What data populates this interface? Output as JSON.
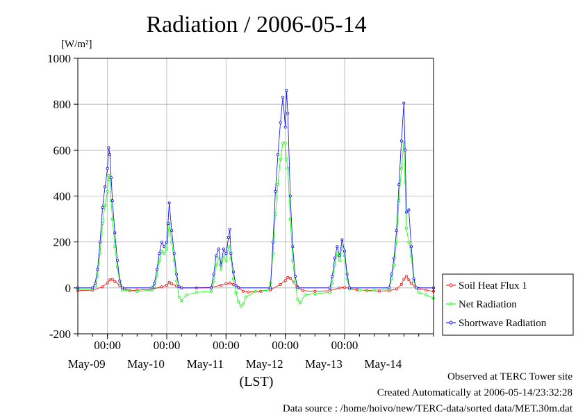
{
  "chart_data": {
    "type": "line",
    "title": "Radiation / 2006-05-14",
    "ylabel": "[W/m²]",
    "xlabel": "(LST)",
    "ylim": [
      -200,
      1000
    ],
    "yticks": [
      -200,
      0,
      200,
      400,
      600,
      800,
      1000
    ],
    "x_start": "2006-05-08T12:00",
    "x_end": "2006-05-14T12:00",
    "midnight_ticks": [
      {
        "time": "2006-05-09T00:00",
        "label": "00:00"
      },
      {
        "time": "2006-05-10T00:00",
        "label": "00:00"
      },
      {
        "time": "2006-05-11T00:00",
        "label": "00:00"
      },
      {
        "time": "2006-05-12T00:00",
        "label": "00:00"
      },
      {
        "time": "2006-05-13T00:00",
        "label": "00:00"
      }
    ],
    "day_labels": [
      {
        "time": "2006-05-09T00:00",
        "label": "May-09"
      },
      {
        "time": "2006-05-10T00:00",
        "label": "May-10"
      },
      {
        "time": "2006-05-11T00:00",
        "label": "May-11"
      },
      {
        "time": "2006-05-12T00:00",
        "label": "May-12"
      },
      {
        "time": "2006-05-13T00:00",
        "label": "May-13"
      },
      {
        "time": "2006-05-14T00:00",
        "label": "May-14"
      }
    ],
    "grid": true,
    "legend_position": "bottom-right outside plot",
    "series": [
      {
        "name": "Soil Heat Flux 1",
        "color": "#ff0000",
        "points": [
          [
            "2006-05-08T12:00",
            -12
          ],
          [
            "2006-05-08T18:00",
            -10
          ],
          [
            "2006-05-08T22:00",
            5
          ],
          [
            "2006-05-09T00:00",
            22
          ],
          [
            "2006-05-09T01:00",
            35
          ],
          [
            "2006-05-09T02:00",
            37
          ],
          [
            "2006-05-09T03:00",
            28
          ],
          [
            "2006-05-09T05:00",
            10
          ],
          [
            "2006-05-09T07:00",
            -5
          ],
          [
            "2006-05-09T09:00",
            -12
          ],
          [
            "2006-05-09T12:00",
            -10
          ],
          [
            "2006-05-09T18:00",
            -6
          ],
          [
            "2006-05-09T22:00",
            5
          ],
          [
            "2006-05-10T00:00",
            12
          ],
          [
            "2006-05-10T01:00",
            25
          ],
          [
            "2006-05-10T02:00",
            18
          ],
          [
            "2006-05-10T04:00",
            8
          ],
          [
            "2006-05-10T06:00",
            0
          ],
          [
            "2006-05-10T12:00",
            0
          ],
          [
            "2006-05-10T18:00",
            2
          ],
          [
            "2006-05-10T22:00",
            12
          ],
          [
            "2006-05-11T00:00",
            18
          ],
          [
            "2006-05-11T01:30",
            22
          ],
          [
            "2006-05-11T03:00",
            15
          ],
          [
            "2006-05-11T05:00",
            2
          ],
          [
            "2006-05-11T07:00",
            -15
          ],
          [
            "2006-05-11T09:00",
            -18
          ],
          [
            "2006-05-11T14:00",
            -15
          ],
          [
            "2006-05-11T18:00",
            -8
          ],
          [
            "2006-05-11T22:00",
            15
          ],
          [
            "2006-05-12T00:00",
            32
          ],
          [
            "2006-05-12T01:00",
            45
          ],
          [
            "2006-05-12T02:00",
            42
          ],
          [
            "2006-05-12T03:30",
            25
          ],
          [
            "2006-05-12T05:00",
            5
          ],
          [
            "2006-05-12T07:00",
            -12
          ],
          [
            "2006-05-12T12:00",
            -15
          ],
          [
            "2006-05-12T18:00",
            -12
          ],
          [
            "2006-05-12T22:00",
            0
          ],
          [
            "2006-05-13T00:00",
            2
          ],
          [
            "2006-05-13T02:00",
            -2
          ],
          [
            "2006-05-13T05:00",
            -8
          ],
          [
            "2006-05-13T09:00",
            -12
          ],
          [
            "2006-05-13T14:00",
            -14
          ],
          [
            "2006-05-13T18:00",
            -12
          ],
          [
            "2006-05-13T21:00",
            -5
          ],
          [
            "2006-05-13T23:00",
            15
          ],
          [
            "2006-05-14T00:00",
            38
          ],
          [
            "2006-05-14T01:00",
            50
          ],
          [
            "2006-05-14T02:00",
            35
          ],
          [
            "2006-05-14T03:00",
            20
          ],
          [
            "2006-05-14T04:30",
            8
          ],
          [
            "2006-05-14T06:00",
            -3
          ],
          [
            "2006-05-14T09:00",
            -10
          ],
          [
            "2006-05-14T12:00",
            -15
          ]
        ]
      },
      {
        "name": "Net Radiation",
        "color": "#00ff00",
        "points": [
          [
            "2006-05-08T12:00",
            -5
          ],
          [
            "2006-05-08T18:00",
            -5
          ],
          [
            "2006-05-08T19:00",
            10
          ],
          [
            "2006-05-08T20:00",
            50
          ],
          [
            "2006-05-08T21:00",
            150
          ],
          [
            "2006-05-08T22:00",
            280
          ],
          [
            "2006-05-08T23:00",
            360
          ],
          [
            "2006-05-09T00:00",
            420
          ],
          [
            "2006-05-09T00:30",
            490
          ],
          [
            "2006-05-09T01:00",
            470
          ],
          [
            "2006-05-09T01:30",
            380
          ],
          [
            "2006-05-09T02:00",
            300
          ],
          [
            "2006-05-09T03:00",
            180
          ],
          [
            "2006-05-09T04:00",
            90
          ],
          [
            "2006-05-09T05:00",
            20
          ],
          [
            "2006-05-09T06:00",
            -10
          ],
          [
            "2006-05-09T12:00",
            -15
          ],
          [
            "2006-05-09T18:00",
            -10
          ],
          [
            "2006-05-09T19:00",
            5
          ],
          [
            "2006-05-09T20:00",
            50
          ],
          [
            "2006-05-09T21:00",
            120
          ],
          [
            "2006-05-09T22:00",
            160
          ],
          [
            "2006-05-09T23:00",
            150
          ],
          [
            "2006-05-10T00:00",
            170
          ],
          [
            "2006-05-10T00:30",
            230
          ],
          [
            "2006-05-10T01:00",
            280
          ],
          [
            "2006-05-10T02:00",
            200
          ],
          [
            "2006-05-10T03:00",
            120
          ],
          [
            "2006-05-10T04:00",
            30
          ],
          [
            "2006-05-10T05:00",
            -40
          ],
          [
            "2006-05-10T06:00",
            -55
          ],
          [
            "2006-05-10T08:00",
            -30
          ],
          [
            "2006-05-10T12:00",
            -20
          ],
          [
            "2006-05-10T18:00",
            -15
          ],
          [
            "2006-05-10T19:00",
            30
          ],
          [
            "2006-05-10T20:00",
            100
          ],
          [
            "2006-05-10T21:00",
            130
          ],
          [
            "2006-05-10T22:00",
            80
          ],
          [
            "2006-05-10T23:00",
            140
          ],
          [
            "2006-05-11T00:00",
            120
          ],
          [
            "2006-05-11T01:00",
            180
          ],
          [
            "2006-05-11T02:00",
            130
          ],
          [
            "2006-05-11T03:00",
            40
          ],
          [
            "2006-05-11T04:00",
            -20
          ],
          [
            "2006-05-11T05:00",
            -60
          ],
          [
            "2006-05-11T06:00",
            -80
          ],
          [
            "2006-05-11T07:00",
            -70
          ],
          [
            "2006-05-11T08:00",
            -40
          ],
          [
            "2006-05-11T12:00",
            -15
          ],
          [
            "2006-05-11T17:00",
            -10
          ],
          [
            "2006-05-11T18:00",
            20
          ],
          [
            "2006-05-11T19:00",
            150
          ],
          [
            "2006-05-11T20:00",
            320
          ],
          [
            "2006-05-11T21:00",
            450
          ],
          [
            "2006-05-11T22:00",
            560
          ],
          [
            "2006-05-11T23:00",
            630
          ],
          [
            "2006-05-12T00:00",
            630
          ],
          [
            "2006-05-12T00:30",
            560
          ],
          [
            "2006-05-12T01:00",
            520
          ],
          [
            "2006-05-12T02:00",
            300
          ],
          [
            "2006-05-12T03:00",
            120
          ],
          [
            "2006-05-12T04:00",
            20
          ],
          [
            "2006-05-12T05:00",
            -50
          ],
          [
            "2006-05-12T06:00",
            -65
          ],
          [
            "2006-05-12T08:00",
            -30
          ],
          [
            "2006-05-12T12:00",
            -25
          ],
          [
            "2006-05-12T18:00",
            -20
          ],
          [
            "2006-05-12T19:00",
            20
          ],
          [
            "2006-05-12T20:00",
            100
          ],
          [
            "2006-05-12T21:00",
            150
          ],
          [
            "2006-05-12T22:00",
            120
          ],
          [
            "2006-05-12T23:00",
            180
          ],
          [
            "2006-05-13T00:00",
            140
          ],
          [
            "2006-05-13T01:00",
            40
          ],
          [
            "2006-05-13T02:00",
            -5
          ],
          [
            "2006-05-13T06:00",
            -10
          ],
          [
            "2006-05-13T12:00",
            -10
          ],
          [
            "2006-05-13T18:00",
            -5
          ],
          [
            "2006-05-13T19:00",
            40
          ],
          [
            "2006-05-13T20:00",
            100
          ],
          [
            "2006-05-13T21:00",
            200
          ],
          [
            "2006-05-13T22:00",
            380
          ],
          [
            "2006-05-13T23:00",
            520
          ],
          [
            "2006-05-14T00:00",
            635
          ],
          [
            "2006-05-14T00:30",
            460
          ],
          [
            "2006-05-14T01:00",
            260
          ],
          [
            "2006-05-14T02:00",
            200
          ],
          [
            "2006-05-14T03:00",
            140
          ],
          [
            "2006-05-14T04:00",
            30
          ],
          [
            "2006-05-14T06:00",
            -20
          ],
          [
            "2006-05-14T09:00",
            -30
          ],
          [
            "2006-05-14T12:00",
            -45
          ]
        ]
      },
      {
        "name": "Shortwave Radiation",
        "color": "#0000ff",
        "points": [
          [
            "2006-05-08T12:00",
            0
          ],
          [
            "2006-05-08T18:00",
            0
          ],
          [
            "2006-05-08T19:00",
            20
          ],
          [
            "2006-05-08T20:00",
            80
          ],
          [
            "2006-05-08T21:00",
            200
          ],
          [
            "2006-05-08T22:00",
            350
          ],
          [
            "2006-05-08T23:00",
            440
          ],
          [
            "2006-05-09T00:00",
            520
          ],
          [
            "2006-05-09T00:30",
            610
          ],
          [
            "2006-05-09T01:00",
            580
          ],
          [
            "2006-05-09T01:30",
            480
          ],
          [
            "2006-05-09T02:00",
            380
          ],
          [
            "2006-05-09T03:00",
            240
          ],
          [
            "2006-05-09T04:00",
            120
          ],
          [
            "2006-05-09T05:00",
            30
          ],
          [
            "2006-05-09T06:00",
            0
          ],
          [
            "2006-05-09T18:00",
            0
          ],
          [
            "2006-05-09T19:00",
            20
          ],
          [
            "2006-05-09T20:00",
            80
          ],
          [
            "2006-05-09T21:00",
            150
          ],
          [
            "2006-05-09T22:00",
            200
          ],
          [
            "2006-05-09T23:00",
            180
          ],
          [
            "2006-05-10T00:00",
            200
          ],
          [
            "2006-05-10T00:30",
            280
          ],
          [
            "2006-05-10T01:00",
            370
          ],
          [
            "2006-05-10T02:00",
            250
          ],
          [
            "2006-05-10T03:00",
            150
          ],
          [
            "2006-05-10T04:00",
            60
          ],
          [
            "2006-05-10T05:00",
            5
          ],
          [
            "2006-05-10T06:00",
            0
          ],
          [
            "2006-05-10T18:00",
            0
          ],
          [
            "2006-05-10T19:00",
            60
          ],
          [
            "2006-05-10T20:00",
            140
          ],
          [
            "2006-05-10T21:00",
            170
          ],
          [
            "2006-05-10T22:00",
            100
          ],
          [
            "2006-05-10T23:00",
            170
          ],
          [
            "2006-05-11T00:00",
            150
          ],
          [
            "2006-05-11T01:00",
            220
          ],
          [
            "2006-05-11T01:30",
            255
          ],
          [
            "2006-05-11T02:00",
            150
          ],
          [
            "2006-05-11T03:00",
            70
          ],
          [
            "2006-05-11T04:00",
            10
          ],
          [
            "2006-05-11T05:00",
            0
          ],
          [
            "2006-05-11T18:00",
            0
          ],
          [
            "2006-05-11T19:00",
            200
          ],
          [
            "2006-05-11T20:00",
            420
          ],
          [
            "2006-05-11T21:00",
            580
          ],
          [
            "2006-05-11T22:00",
            720
          ],
          [
            "2006-05-11T23:00",
            830
          ],
          [
            "2006-05-12T00:00",
            700
          ],
          [
            "2006-05-12T00:30",
            860
          ],
          [
            "2006-05-12T01:00",
            760
          ],
          [
            "2006-05-12T02:00",
            400
          ],
          [
            "2006-05-12T03:00",
            180
          ],
          [
            "2006-05-12T04:00",
            50
          ],
          [
            "2006-05-12T05:00",
            0
          ],
          [
            "2006-05-12T18:00",
            0
          ],
          [
            "2006-05-12T19:00",
            50
          ],
          [
            "2006-05-12T20:00",
            130
          ],
          [
            "2006-05-12T21:00",
            180
          ],
          [
            "2006-05-12T22:00",
            140
          ],
          [
            "2006-05-12T23:00",
            210
          ],
          [
            "2006-05-13T00:00",
            160
          ],
          [
            "2006-05-13T01:00",
            60
          ],
          [
            "2006-05-13T02:00",
            0
          ],
          [
            "2006-05-13T18:00",
            0
          ],
          [
            "2006-05-13T19:00",
            60
          ],
          [
            "2006-05-13T20:00",
            130
          ],
          [
            "2006-05-13T21:00",
            250
          ],
          [
            "2006-05-13T22:00",
            450
          ],
          [
            "2006-05-13T23:00",
            640
          ],
          [
            "2006-05-14T00:00",
            805
          ],
          [
            "2006-05-14T00:30",
            600
          ],
          [
            "2006-05-14T01:00",
            330
          ],
          [
            "2006-05-14T02:00",
            340
          ],
          [
            "2006-05-14T03:00",
            180
          ],
          [
            "2006-05-14T04:00",
            40
          ],
          [
            "2006-05-14T05:00",
            0
          ],
          [
            "2006-05-14T12:00",
            0
          ]
        ]
      }
    ]
  },
  "footer": {
    "observed": "Observed at TERC Tower site",
    "created": "Created Automatically at 2006-05-14/23:32:28",
    "source": "Data source : /home/hoivo/new/TERC-data/sorted  data/MET.30m.dat"
  }
}
